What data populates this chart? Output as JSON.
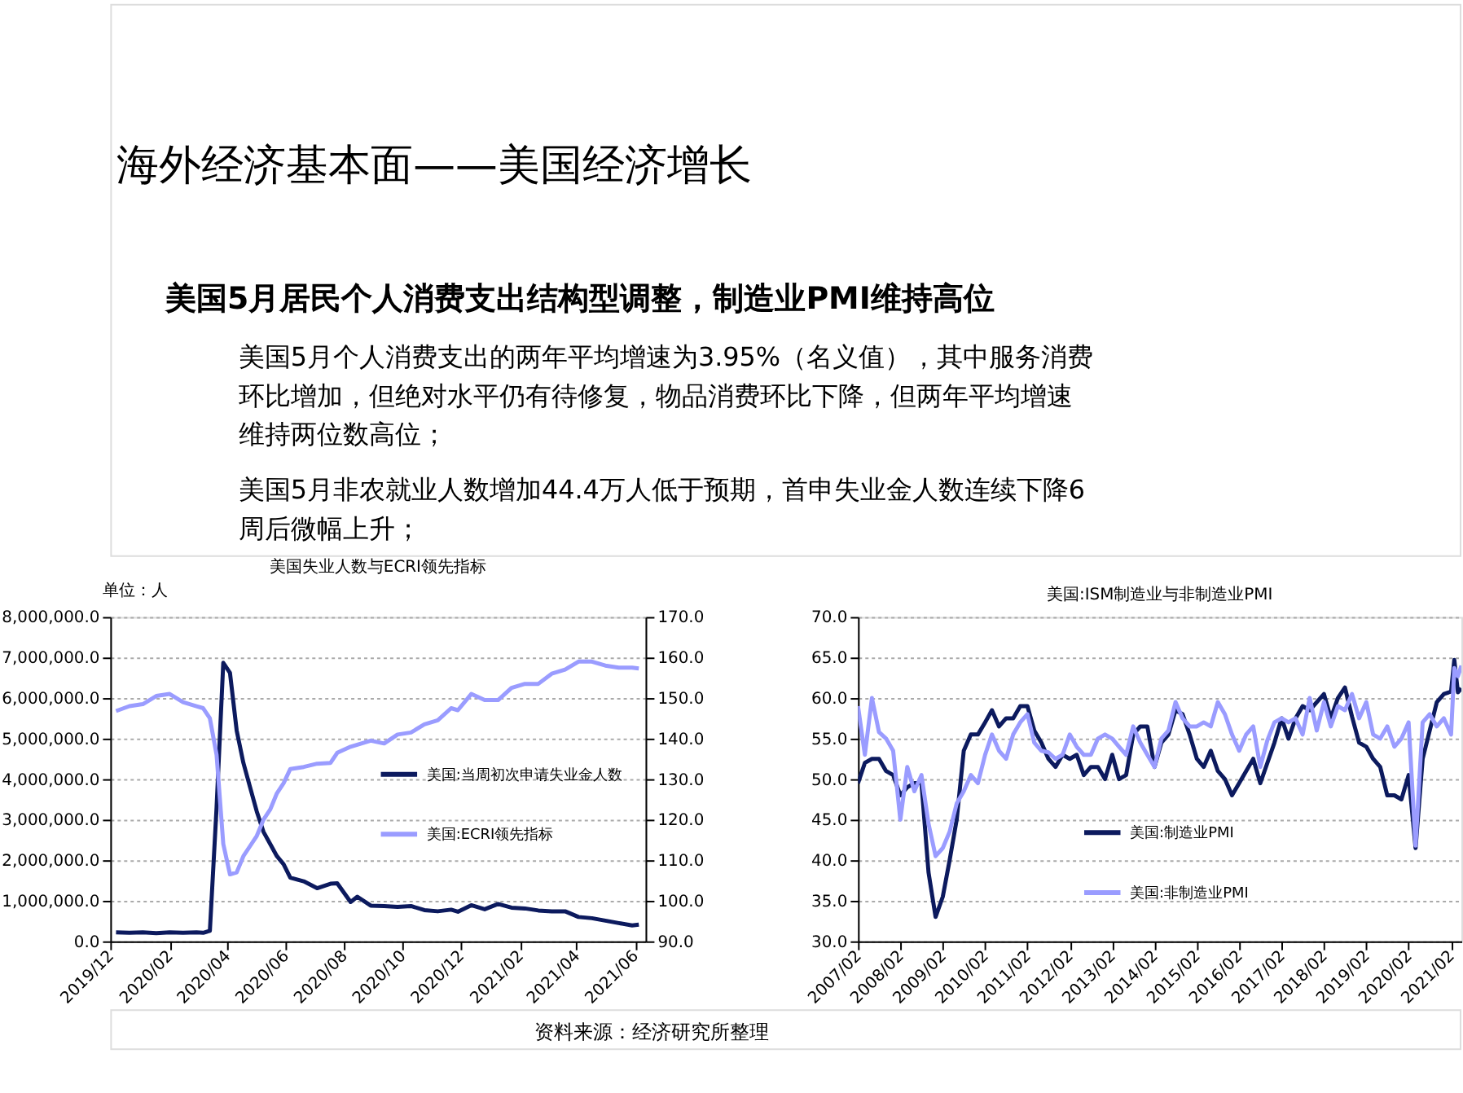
{
  "chart_data": [
    {
      "type": "line",
      "title": "美国失业人数与ECRI领先指标",
      "ylabel": "单位：人",
      "grid": "y",
      "legend": "right",
      "annotations": [
        "海外经济基本面——美国经济增长",
        "美国5月居民个人消费支出结构型调整，制造业PMI维持高位",
        "美国5月个人消费支出的两年平均增速为3.95%（名义值），其中服务消费环比增加，但绝对水平仍有待修复，物品消费环比下降，但两年平均增速维持两位数高位；",
        "美国5月非农就业人数增加44.4万人低于预期，首申失业金人数连续下降6周后微幅上升；"
      ],
      "x": [
        "2019-12-07",
        "2019-12-21",
        "2020-01-04",
        "2020-01-18",
        "2020-02-01",
        "2020-02-15",
        "2020-02-29",
        "2020-03-07",
        "2020-03-14",
        "2020-03-21",
        "2020-03-28",
        "2020-04-04",
        "2020-04-11",
        "2020-04-18",
        "2020-04-25",
        "2020-05-02",
        "2020-05-09",
        "2020-05-16",
        "2020-05-23",
        "2020-05-30",
        "2020-06-06",
        "2020-06-20",
        "2020-07-04",
        "2020-07-18",
        "2020-07-25",
        "2020-08-08",
        "2020-08-15",
        "2020-08-29",
        "2020-09-12",
        "2020-09-26",
        "2020-10-10",
        "2020-10-24",
        "2020-11-07",
        "2020-11-21",
        "2020-11-28",
        "2020-12-12",
        "2020-12-26",
        "2021-01-09",
        "2021-01-23",
        "2021-02-06",
        "2021-02-20",
        "2021-03-06",
        "2021-03-20",
        "2021-04-03",
        "2021-04-17",
        "2021-05-01",
        "2021-05-15",
        "2021-05-29",
        "2021-06-05"
      ],
      "xlim": [
        "2019-12-01",
        "2021-06-12"
      ],
      "xticks": [
        {
          "value": "2019-12",
          "label": "2019/12"
        },
        {
          "value": "2020-02",
          "label": "2020/02"
        },
        {
          "value": "2020-04",
          "label": "2020/04"
        },
        {
          "value": "2020-06",
          "label": "2020/06"
        },
        {
          "value": "2020-08",
          "label": "2020/08"
        },
        {
          "value": "2020-10",
          "label": "2020/10"
        },
        {
          "value": "2020-12",
          "label": "2020/12"
        },
        {
          "value": "2021-02",
          "label": "2021/02"
        },
        {
          "value": "2021-04",
          "label": "2021/04"
        },
        {
          "value": "2021-06",
          "label": "2021/06"
        }
      ],
      "ylim": [
        0,
        8000000
      ],
      "yticks": [
        {
          "value": 0,
          "label": "0.0"
        },
        {
          "value": 1000000,
          "label": "1,000,000.0"
        },
        {
          "value": 2000000,
          "label": "2,000,000.0"
        },
        {
          "value": 3000000,
          "label": "3,000,000.0"
        },
        {
          "value": 4000000,
          "label": "4,000,000.0"
        },
        {
          "value": 5000000,
          "label": "5,000,000.0"
        },
        {
          "value": 6000000,
          "label": "6,000,000.0"
        },
        {
          "value": 7000000,
          "label": "7,000,000.0"
        },
        {
          "value": 8000000,
          "label": "8,000,000.0"
        }
      ],
      "y2lim": [
        90,
        170
      ],
      "y2ticks": [
        {
          "value": 90,
          "label": "90.0"
        },
        {
          "value": 100,
          "label": "100.0"
        },
        {
          "value": 110,
          "label": "110.0"
        },
        {
          "value": 120,
          "label": "120.0"
        },
        {
          "value": 130,
          "label": "130.0"
        },
        {
          "value": 140,
          "label": "140.0"
        },
        {
          "value": 150,
          "label": "150.0"
        },
        {
          "value": 160,
          "label": "160.0"
        },
        {
          "value": 170,
          "label": "170.0"
        }
      ],
      "series": [
        {
          "name": "美国:当周初次申请失业金人数",
          "color": "#0c1a5e",
          "values": [
            220000,
            210000,
            220000,
            200000,
            220000,
            210000,
            220000,
            210000,
            260000,
            3300000,
            6870000,
            6620000,
            5200000,
            4400000,
            3800000,
            3200000,
            2700000,
            2400000,
            2100000,
            1900000,
            1570000,
            1480000,
            1310000,
            1420000,
            1430000,
            970000,
            1100000,
            880000,
            870000,
            850000,
            870000,
            770000,
            740000,
            780000,
            730000,
            890000,
            790000,
            920000,
            830000,
            810000,
            760000,
            740000,
            740000,
            600000,
            570000,
            510000,
            450000,
            390000,
            410000
          ]
        },
        {
          "name": "美国:ECRI领先指标",
          "color": "#9a9cff",
          "axis": "y2",
          "values": [
            146.8,
            148,
            148.5,
            150.5,
            151,
            149,
            148,
            147.5,
            145,
            136,
            114,
            106.5,
            107,
            111,
            113.5,
            116,
            120,
            122.5,
            126.5,
            129,
            132.5,
            133,
            133.8,
            134,
            136.5,
            138,
            138.5,
            139.5,
            138.8,
            141,
            141.5,
            143.5,
            144.5,
            147.5,
            147,
            151,
            149.5,
            149.5,
            152.5,
            153.5,
            153.5,
            156,
            157,
            159,
            159,
            158,
            157.5,
            157.5,
            157.3
          ]
        }
      ]
    },
    {
      "type": "line",
      "title": "美国:ISM制造业与非制造业PMI",
      "grid": "y",
      "legend": "bottom",
      "annotations": [
        "资料来源：经济研究所整理"
      ],
      "x": [
        "2007-02",
        "2007-04",
        "2007-06",
        "2007-08",
        "2007-10",
        "2007-12",
        "2008-02",
        "2008-04",
        "2008-06",
        "2008-08",
        "2008-10",
        "2008-12",
        "2009-02",
        "2009-04",
        "2009-06",
        "2009-08",
        "2009-10",
        "2009-12",
        "2010-02",
        "2010-04",
        "2010-06",
        "2010-08",
        "2010-10",
        "2010-12",
        "2011-02",
        "2011-04",
        "2011-06",
        "2011-08",
        "2011-10",
        "2011-12",
        "2012-02",
        "2012-04",
        "2012-06",
        "2012-08",
        "2012-10",
        "2012-12",
        "2013-02",
        "2013-04",
        "2013-06",
        "2013-08",
        "2013-10",
        "2013-12",
        "2014-02",
        "2014-04",
        "2014-06",
        "2014-08",
        "2014-10",
        "2014-12",
        "2015-02",
        "2015-04",
        "2015-06",
        "2015-08",
        "2015-10",
        "2015-12",
        "2016-02",
        "2016-04",
        "2016-06",
        "2016-08",
        "2016-10",
        "2016-12",
        "2017-02",
        "2017-04",
        "2017-06",
        "2017-08",
        "2017-10",
        "2017-12",
        "2018-02",
        "2018-04",
        "2018-06",
        "2018-08",
        "2018-10",
        "2018-12",
        "2019-02",
        "2019-04",
        "2019-06",
        "2019-08",
        "2019-10",
        "2019-12",
        "2020-02",
        "2020-04",
        "2020-06",
        "2020-08",
        "2020-10",
        "2020-12",
        "2021-02",
        "2021-03",
        "2021-04",
        "2021-05"
      ],
      "xlim": [
        "2007-02",
        "2021-05"
      ],
      "xticks": [
        {
          "value": "2007-02",
          "label": "2007/02"
        },
        {
          "value": "2008-02",
          "label": "2008/02"
        },
        {
          "value": "2009-02",
          "label": "2009/02"
        },
        {
          "value": "2010-02",
          "label": "2010/02"
        },
        {
          "value": "2011-02",
          "label": "2011/02"
        },
        {
          "value": "2012-02",
          "label": "2012/02"
        },
        {
          "value": "2013-02",
          "label": "2013/02"
        },
        {
          "value": "2014-02",
          "label": "2014/02"
        },
        {
          "value": "2015-02",
          "label": "2015/02"
        },
        {
          "value": "2016-02",
          "label": "2016/02"
        },
        {
          "value": "2017-02",
          "label": "2017/02"
        },
        {
          "value": "2018-02",
          "label": "2018/02"
        },
        {
          "value": "2019-02",
          "label": "2019/02"
        },
        {
          "value": "2020-02",
          "label": "2020/02"
        },
        {
          "value": "2021-02",
          "label": "2021/02"
        }
      ],
      "ylim": [
        30,
        70
      ],
      "yticks": [
        {
          "value": 30,
          "label": "30.0"
        },
        {
          "value": 35,
          "label": "35.0"
        },
        {
          "value": 40,
          "label": "40.0"
        },
        {
          "value": 45,
          "label": "45.0"
        },
        {
          "value": 50,
          "label": "50.0"
        },
        {
          "value": 55,
          "label": "55.0"
        },
        {
          "value": 60,
          "label": "60.0"
        },
        {
          "value": 65,
          "label": "65.0"
        },
        {
          "value": 70,
          "label": "70.0"
        }
      ],
      "series": [
        {
          "name": "美国:制造业PMI",
          "color": "#0c1a5e",
          "values": [
            49.5,
            52.0,
            52.5,
            52.5,
            51.0,
            50.5,
            48.0,
            49.0,
            49.5,
            49.5,
            38.5,
            33.0,
            35.5,
            40.0,
            45.0,
            53.5,
            55.5,
            55.5,
            57.0,
            58.5,
            56.5,
            57.5,
            57.5,
            59.0,
            59.0,
            56.0,
            54.5,
            52.5,
            51.5,
            53.0,
            52.5,
            53.0,
            50.5,
            51.5,
            51.5,
            50.0,
            53.0,
            50.0,
            50.5,
            55.5,
            56.5,
            56.5,
            51.5,
            54.5,
            55.5,
            58.5,
            58.0,
            55.5,
            52.5,
            51.5,
            53.5,
            51.0,
            50.0,
            48.0,
            49.5,
            51.0,
            52.5,
            49.5,
            52.0,
            54.5,
            57.5,
            55.0,
            57.5,
            59.0,
            58.5,
            59.5,
            60.5,
            57.5,
            60.0,
            61.3,
            57.7,
            54.5,
            54.0,
            52.5,
            51.5,
            48.0,
            48.0,
            47.5,
            50.5,
            41.5,
            52.5,
            56.0,
            59.5,
            60.5,
            60.8,
            64.7,
            60.7,
            61.2
          ]
        },
        {
          "name": "美国:非制造业PMI",
          "color": "#9a9cff",
          "values": [
            59.0,
            53.0,
            60.0,
            55.8,
            55.0,
            53.5,
            45.0,
            51.5,
            48.5,
            50.5,
            44.5,
            40.5,
            41.5,
            43.5,
            47.0,
            48.5,
            50.5,
            49.5,
            53.0,
            55.5,
            53.5,
            52.5,
            55.5,
            57.0,
            58.0,
            54.5,
            53.5,
            53.3,
            52.5,
            53.0,
            55.5,
            54.0,
            53.0,
            53.0,
            55.0,
            55.5,
            55.0,
            54.0,
            53.0,
            56.5,
            54.5,
            53.0,
            51.5,
            55.0,
            56.0,
            59.5,
            57.5,
            56.5,
            56.5,
            57.0,
            56.5,
            59.5,
            58.0,
            55.5,
            53.5,
            55.5,
            56.5,
            51.5,
            54.8,
            57.0,
            57.5,
            57.0,
            57.5,
            55.5,
            60.0,
            56.0,
            59.5,
            56.5,
            59.0,
            58.5,
            60.5,
            57.5,
            59.5,
            55.5,
            55.0,
            56.5,
            54.0,
            55.0,
            57.0,
            41.8,
            57.0,
            58.0,
            56.5,
            57.5,
            55.5,
            63.7,
            62.7,
            64.0
          ]
        }
      ]
    }
  ]
}
